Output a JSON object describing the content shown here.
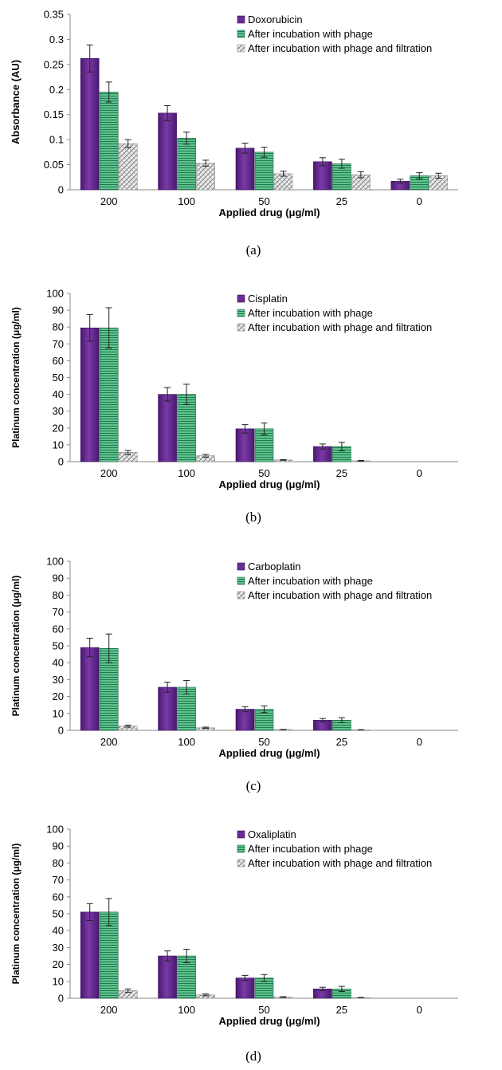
{
  "colors": {
    "primary": "#6a2c91",
    "phage": "#5fc38f",
    "filtered": "#c9c9c9"
  },
  "chart_data": [
    {
      "type": "bar",
      "caption": "(a)",
      "categories": [
        "200",
        "100",
        "50",
        "25",
        "0"
      ],
      "xlabel": "Applied drug (μg/ml)",
      "ylabel": "Absorbance (AU)",
      "ylim": [
        0,
        0.35
      ],
      "yticks": [
        "0",
        "0.05",
        "0.1",
        "0.15",
        "0.2",
        "0.25",
        "0.3",
        "0.35"
      ],
      "legend_position": "top-right",
      "series": [
        {
          "name": "Doxorubicin",
          "values": [
            0.262,
            0.153,
            0.083,
            0.056,
            0.017
          ],
          "errors": [
            0.027,
            0.015,
            0.01,
            0.008,
            0.004
          ]
        },
        {
          "name": "After incubation with phage",
          "values": [
            0.195,
            0.103,
            0.075,
            0.052,
            0.028
          ],
          "errors": [
            0.02,
            0.012,
            0.01,
            0.009,
            0.006
          ]
        },
        {
          "name": "After incubation with phage and filtration",
          "values": [
            0.092,
            0.053,
            0.032,
            0.03,
            0.028
          ],
          "errors": [
            0.008,
            0.006,
            0.005,
            0.006,
            0.005
          ]
        }
      ]
    },
    {
      "type": "bar",
      "caption": "(b)",
      "categories": [
        "200",
        "100",
        "50",
        "25",
        "0"
      ],
      "xlabel": "Applied drug (μg/ml)",
      "ylabel": "Platinum concentration (μg/ml)",
      "ylim": [
        0,
        100
      ],
      "yticks": [
        "0",
        "10",
        "20",
        "30",
        "40",
        "50",
        "60",
        "70",
        "80",
        "90",
        "100"
      ],
      "legend_position": "top-right",
      "series": [
        {
          "name": "Cisplatin",
          "values": [
            79.5,
            40,
            19.5,
            9,
            0
          ],
          "errors": [
            8,
            4,
            2.5,
            1.5,
            0
          ]
        },
        {
          "name": "After incubation with phage",
          "values": [
            79.5,
            40,
            19.5,
            9,
            0
          ],
          "errors": [
            12,
            6,
            3.5,
            2.5,
            0
          ]
        },
        {
          "name": "After incubation with phage and filtration",
          "values": [
            5.5,
            3.5,
            1,
            0.5,
            0
          ],
          "errors": [
            1.2,
            0.8,
            0.2,
            0.2,
            0
          ]
        }
      ]
    },
    {
      "type": "bar",
      "caption": "(c)",
      "categories": [
        "200",
        "100",
        "50",
        "25",
        "0"
      ],
      "xlabel": "Applied drug (μg/ml)",
      "ylabel": "Platinum concentration (μg/ml)",
      "ylim": [
        0,
        100
      ],
      "yticks": [
        "0",
        "10",
        "20",
        "30",
        "40",
        "50",
        "60",
        "70",
        "80",
        "90",
        "100"
      ],
      "legend_position": "top-right",
      "series": [
        {
          "name": "Carboplatin",
          "values": [
            49,
            25.5,
            12.5,
            6,
            0
          ],
          "errors": [
            5.5,
            3,
            1.5,
            1,
            0
          ]
        },
        {
          "name": "After incubation with phage",
          "values": [
            48.5,
            25.5,
            12.5,
            6,
            0
          ],
          "errors": [
            8.5,
            4,
            2,
            1.5,
            0
          ]
        },
        {
          "name": "After incubation with phage and filtration",
          "values": [
            2.5,
            1.5,
            0.5,
            0.3,
            0
          ],
          "errors": [
            0.6,
            0.4,
            0.1,
            0.1,
            0
          ]
        }
      ]
    },
    {
      "type": "bar",
      "caption": "(d)",
      "categories": [
        "200",
        "100",
        "50",
        "25",
        "0"
      ],
      "xlabel": "Applied drug (μg/ml)",
      "ylabel": "Platinum concentration (μg/ml)",
      "ylim": [
        0,
        100
      ],
      "yticks": [
        "0",
        "10",
        "20",
        "30",
        "40",
        "50",
        "60",
        "70",
        "80",
        "90",
        "100"
      ],
      "legend_position": "top-right",
      "series": [
        {
          "name": "Oxaliplatin",
          "values": [
            51,
            25,
            12,
            5.5,
            0
          ],
          "errors": [
            5,
            3,
            1.5,
            1,
            0
          ]
        },
        {
          "name": "After incubation with phage",
          "values": [
            51,
            25,
            12,
            5.5,
            0
          ],
          "errors": [
            8,
            4,
            2,
            1.5,
            0
          ]
        },
        {
          "name": "After incubation with phage and filtration",
          "values": [
            4.5,
            2,
            0.7,
            0.4,
            0
          ],
          "errors": [
            1,
            0.5,
            0.2,
            0.1,
            0
          ]
        }
      ]
    }
  ]
}
